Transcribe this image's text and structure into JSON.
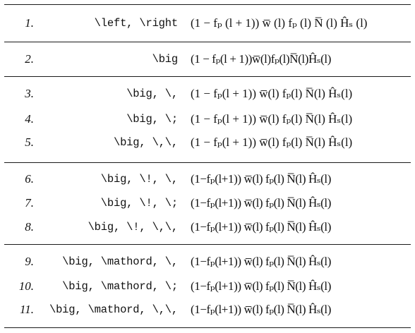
{
  "table": {
    "rows": [
      {
        "num": "1.",
        "cmd": "\\left, \\right",
        "formula": "(1 − fₚ (l + 1)) w̅ (l) fₚ (l) N̅ (l) Ĥₛ (l)"
      },
      {
        "num": "2.",
        "cmd": "\\big",
        "formula": "(1 − fₚ(l + 1))w̅(l)fₚ(l)N̅(l)Ĥₛ(l)"
      },
      {
        "num": "3.",
        "cmd": "\\big, \\,",
        "formula": "(1 − fₚ(l + 1)) w̅(l) fₚ(l) N̅(l) Ĥₛ(l)"
      },
      {
        "num": "4.",
        "cmd": "\\big, \\;",
        "formula": "(1 − fₚ(l + 1))  w̅(l)  fₚ(l)  N̅(l)  Ĥₛ(l)"
      },
      {
        "num": "5.",
        "cmd": "\\big, \\,\\,",
        "formula": "(1 − fₚ(l + 1))  w̅(l)  fₚ(l)  N̅(l)  Ĥₛ(l)"
      },
      {
        "num": "6.",
        "cmd": "\\big, \\!, \\,",
        "formula": "(1−fₚ(l+1)) w̅(l) fₚ(l) N̅(l) Ĥₛ(l)"
      },
      {
        "num": "7.",
        "cmd": "\\big, \\!, \\;",
        "formula": "(1−fₚ(l+1))  w̅(l)  fₚ(l)  N̅(l)  Ĥₛ(l)"
      },
      {
        "num": "8.",
        "cmd": "\\big, \\!, \\,\\,",
        "formula": "(1−fₚ(l+1))  w̅(l)  fₚ(l)  N̅(l)  Ĥₛ(l)"
      },
      {
        "num": "9.",
        "cmd": "\\big, \\mathord, \\,",
        "formula": "(1−fₚ(l+1)) w̅(l) fₚ(l) N̅(l) Ĥₛ(l)"
      },
      {
        "num": "10.",
        "cmd": "\\big, \\mathord, \\;",
        "formula": "(1−fₚ(l+1))  w̅(l)  fₚ(l)  N̅(l)  Ĥₛ(l)"
      },
      {
        "num": "11.",
        "cmd": "\\big, \\mathord, \\,\\,",
        "formula": "(1−fₚ(l+1))  w̅(l)  fₚ(l)  N̅(l)  Ĥₛ(l)"
      }
    ]
  }
}
